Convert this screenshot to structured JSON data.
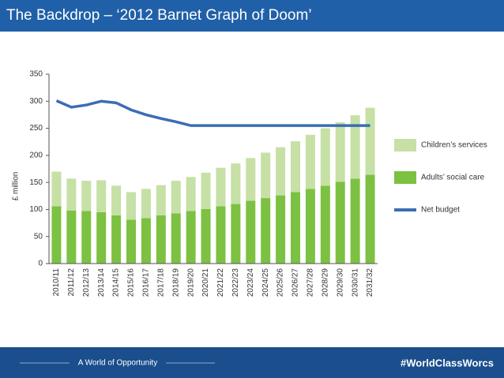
{
  "header": {
    "title": "The Backdrop – ‘2012 Barnet Graph of Doom’"
  },
  "chart_data": {
    "type": "bar",
    "stacked": true,
    "ylabel": "£ million",
    "categories": [
      "2010/11",
      "2011/12",
      "2012/13",
      "2013/14",
      "2014/15",
      "2015/16",
      "2016/17",
      "2017/18",
      "2018/19",
      "2019/20",
      "2020/21",
      "2021/22",
      "2022/23",
      "2023/24",
      "2024/25",
      "2025/26",
      "2026/27",
      "2027/28",
      "2028/29",
      "2029/30",
      "2030/31",
      "2031/32"
    ],
    "series": [
      {
        "name": "Children’s services",
        "color": "#c6e0a6",
        "values": [
          64,
          59,
          56,
          59,
          55,
          51,
          54,
          56,
          60,
          63,
          67,
          71,
          75,
          79,
          84,
          89,
          94,
          100,
          106,
          110,
          117,
          124
        ]
      },
      {
        "name": "Adults’ social care",
        "color": "#7cc142",
        "values": [
          106,
          98,
          97,
          95,
          89,
          81,
          84,
          89,
          93,
          97,
          101,
          106,
          110,
          116,
          121,
          126,
          132,
          138,
          144,
          151,
          157,
          164
        ]
      },
      {
        "name": "Net budget",
        "type": "line",
        "color": "#3b6db4",
        "values": [
          301,
          289,
          293,
          300,
          297,
          284,
          275,
          268,
          262,
          255,
          255,
          255,
          255,
          255,
          255,
          255,
          255,
          255,
          255,
          255,
          255,
          255
        ]
      }
    ],
    "ylim": [
      0,
      350
    ],
    "yticks": [
      0,
      50,
      100,
      150,
      200,
      250,
      300,
      350
    ],
    "grid": false
  },
  "footer": {
    "tagline": "A World of Opportunity",
    "hashtag": "#WorldClassWorcs"
  }
}
